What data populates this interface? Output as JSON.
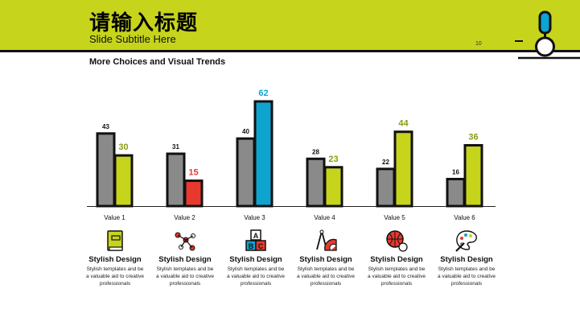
{
  "header": {
    "title": "请输入标题",
    "subtitle": "Slide Subtitle Here",
    "page_number": "10"
  },
  "section_title": "More Choices and Visual Trends",
  "colors": {
    "accent": "#c6d41c",
    "series_a": "#8a8a8a",
    "series_b_default": "#c6d41c",
    "highlight_red": "#e8392f",
    "highlight_blue": "#0fa4cf",
    "outline": "#111111",
    "label_olive": "#8a9a12"
  },
  "chart_data": {
    "type": "bar",
    "categories": [
      "Value 1",
      "Value 2",
      "Value 3",
      "Value 4",
      "Value 5",
      "Value 6"
    ],
    "series": [
      {
        "values": [
          43,
          31,
          40,
          28,
          22,
          16
        ]
      },
      {
        "values": [
          30,
          15,
          62,
          23,
          44,
          36
        ]
      }
    ],
    "ylim": [
      0,
      62
    ],
    "grid": false,
    "legend": "none"
  },
  "features": [
    {
      "icon": "book-icon",
      "title": "Stylish Design",
      "desc": "Stylish templates and be a valuable aid to creative professionals"
    },
    {
      "icon": "dna-molecule-icon",
      "title": "Stylish Design",
      "desc": "Stylish templates and be a valuable aid to creative professionals"
    },
    {
      "icon": "abc-blocks-icon",
      "title": "Stylish Design",
      "desc": "Stylish templates and be a valuable aid to creative professionals"
    },
    {
      "icon": "compass-protractor-icon",
      "title": "Stylish Design",
      "desc": "Stylish templates and be a valuable aid to creative professionals"
    },
    {
      "icon": "sports-balls-icon",
      "title": "Stylish Design",
      "desc": "Stylish templates and be a valuable aid to creative professionals"
    },
    {
      "icon": "paint-palette-icon",
      "title": "Stylish Design",
      "desc": "Stylish templates and be a valuable aid to creative professionals"
    }
  ]
}
